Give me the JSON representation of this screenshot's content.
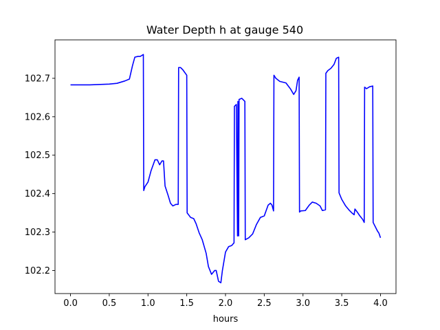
{
  "chart_data": {
    "type": "line",
    "title": "Water Depth h at gauge 540",
    "xlabel": "hours",
    "ylabel": "",
    "xlim": [
      -0.2,
      4.2
    ],
    "ylim": [
      102.14,
      102.8
    ],
    "xticks": [
      0.0,
      0.5,
      1.0,
      1.5,
      2.0,
      2.5,
      3.0,
      3.5,
      4.0
    ],
    "xtick_labels": [
      "0.0",
      "0.5",
      "1.0",
      "1.5",
      "2.0",
      "2.5",
      "3.0",
      "3.5",
      "4.0"
    ],
    "yticks": [
      102.2,
      102.3,
      102.4,
      102.5,
      102.6,
      102.7
    ],
    "ytick_labels": [
      "102.2",
      "102.3",
      "102.4",
      "102.5",
      "102.6",
      "102.7"
    ],
    "grid": false,
    "series": [
      {
        "color": "#0000ff",
        "points": [
          [
            0.0,
            102.683
          ],
          [
            0.25,
            102.683
          ],
          [
            0.5,
            102.685
          ],
          [
            0.6,
            102.687
          ],
          [
            0.7,
            102.693
          ],
          [
            0.76,
            102.698
          ],
          [
            0.8,
            102.733
          ],
          [
            0.83,
            102.755
          ],
          [
            0.87,
            102.757
          ],
          [
            0.9,
            102.757
          ],
          [
            0.94,
            102.762
          ],
          [
            0.945,
            102.408
          ],
          [
            0.96,
            102.418
          ],
          [
            1.0,
            102.43
          ],
          [
            1.04,
            102.46
          ],
          [
            1.09,
            102.488
          ],
          [
            1.12,
            102.488
          ],
          [
            1.15,
            102.475
          ],
          [
            1.18,
            102.485
          ],
          [
            1.2,
            102.485
          ],
          [
            1.22,
            102.42
          ],
          [
            1.26,
            102.395
          ],
          [
            1.29,
            102.375
          ],
          [
            1.32,
            102.368
          ],
          [
            1.36,
            102.372
          ],
          [
            1.39,
            102.372
          ],
          [
            1.395,
            102.728
          ],
          [
            1.42,
            102.728
          ],
          [
            1.45,
            102.722
          ],
          [
            1.5,
            102.708
          ],
          [
            1.505,
            102.35
          ],
          [
            1.55,
            102.338
          ],
          [
            1.59,
            102.335
          ],
          [
            1.62,
            102.322
          ],
          [
            1.66,
            102.298
          ],
          [
            1.7,
            102.28
          ],
          [
            1.75,
            102.245
          ],
          [
            1.78,
            102.21
          ],
          [
            1.82,
            102.19
          ],
          [
            1.86,
            102.2
          ],
          [
            1.88,
            102.2
          ],
          [
            1.91,
            102.172
          ],
          [
            1.94,
            102.168
          ],
          [
            1.96,
            102.2
          ],
          [
            2.0,
            102.248
          ],
          [
            2.04,
            102.262
          ],
          [
            2.08,
            102.265
          ],
          [
            2.11,
            102.272
          ],
          [
            2.115,
            102.627
          ],
          [
            2.14,
            102.632
          ],
          [
            2.155,
            102.29
          ],
          [
            2.16,
            102.64
          ],
          [
            2.17,
            102.29
          ],
          [
            2.175,
            102.645
          ],
          [
            2.21,
            102.648
          ],
          [
            2.25,
            102.64
          ],
          [
            2.255,
            102.28
          ],
          [
            2.3,
            102.285
          ],
          [
            2.35,
            102.295
          ],
          [
            2.4,
            102.32
          ],
          [
            2.45,
            102.338
          ],
          [
            2.5,
            102.342
          ],
          [
            2.55,
            102.37
          ],
          [
            2.58,
            102.375
          ],
          [
            2.6,
            102.37
          ],
          [
            2.62,
            102.355
          ],
          [
            2.625,
            102.708
          ],
          [
            2.65,
            102.7
          ],
          [
            2.7,
            102.692
          ],
          [
            2.78,
            102.688
          ],
          [
            2.84,
            102.672
          ],
          [
            2.88,
            102.658
          ],
          [
            2.91,
            102.668
          ],
          [
            2.93,
            102.695
          ],
          [
            2.95,
            102.703
          ],
          [
            2.955,
            102.352
          ],
          [
            2.97,
            102.355
          ],
          [
            3.03,
            102.356
          ],
          [
            3.08,
            102.37
          ],
          [
            3.12,
            102.378
          ],
          [
            3.17,
            102.375
          ],
          [
            3.22,
            102.368
          ],
          [
            3.25,
            102.356
          ],
          [
            3.29,
            102.358
          ],
          [
            3.295,
            102.713
          ],
          [
            3.32,
            102.72
          ],
          [
            3.36,
            102.726
          ],
          [
            3.4,
            102.736
          ],
          [
            3.43,
            102.752
          ],
          [
            3.46,
            102.755
          ],
          [
            3.465,
            102.402
          ],
          [
            3.5,
            102.385
          ],
          [
            3.55,
            102.368
          ],
          [
            3.6,
            102.356
          ],
          [
            3.63,
            102.35
          ],
          [
            3.66,
            102.345
          ],
          [
            3.67,
            102.36
          ],
          [
            3.7,
            102.352
          ],
          [
            3.73,
            102.343
          ],
          [
            3.77,
            102.333
          ],
          [
            3.79,
            102.325
          ],
          [
            3.795,
            102.677
          ],
          [
            3.82,
            102.673
          ],
          [
            3.86,
            102.678
          ],
          [
            3.9,
            102.68
          ],
          [
            3.905,
            102.325
          ],
          [
            3.93,
            102.315
          ],
          [
            3.96,
            102.303
          ],
          [
            3.98,
            102.297
          ],
          [
            4.0,
            102.285
          ]
        ]
      }
    ]
  }
}
